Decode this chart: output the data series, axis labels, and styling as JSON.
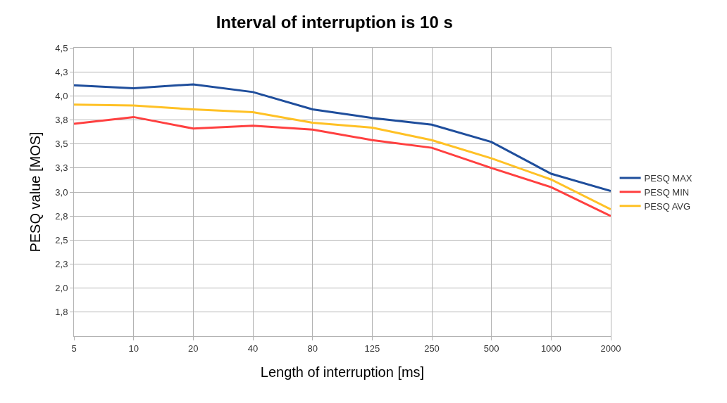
{
  "chart_data": {
    "type": "line",
    "title": "Interval of interruption is 10 s",
    "xlabel": "Length of interruption [ms]",
    "ylabel": "PESQ value [MOS]",
    "categories": [
      "5",
      "10",
      "20",
      "40",
      "80",
      "125",
      "250",
      "500",
      "1000",
      "2000"
    ],
    "series": [
      {
        "name": "PESQ MAX",
        "color": "#1f4e9c",
        "values": [
          4.11,
          4.08,
          4.12,
          4.04,
          3.86,
          3.77,
          3.7,
          3.52,
          3.19,
          3.01
        ]
      },
      {
        "name": "PESQ MIN",
        "color": "#ff4040",
        "values": [
          3.71,
          3.78,
          3.66,
          3.69,
          3.65,
          3.54,
          3.46,
          3.25,
          3.05,
          2.75
        ]
      },
      {
        "name": "PESQ AVG",
        "color": "#ffc125",
        "values": [
          3.91,
          3.9,
          3.86,
          3.83,
          3.72,
          3.67,
          3.54,
          3.35,
          3.13,
          2.82
        ]
      }
    ],
    "ylim": [
      1.5,
      4.5
    ],
    "yticks": [
      {
        "value": 1.75,
        "label": "1,8"
      },
      {
        "value": 2,
        "label": "2,0"
      },
      {
        "value": 2.25,
        "label": "2,3"
      },
      {
        "value": 2.5,
        "label": "2,5"
      },
      {
        "value": 2.75,
        "label": "2,8"
      },
      {
        "value": 3,
        "label": "3,0"
      },
      {
        "value": 3.25,
        "label": "3,3"
      },
      {
        "value": 3.5,
        "label": "3,5"
      },
      {
        "value": 3.75,
        "label": "3,8"
      },
      {
        "value": 4,
        "label": "4,0"
      },
      {
        "value": 4.25,
        "label": "4,3"
      },
      {
        "value": 4.5,
        "label": "4,5"
      }
    ],
    "grid": true,
    "legend": "right",
    "marker": "none",
    "line_style": "solid"
  }
}
